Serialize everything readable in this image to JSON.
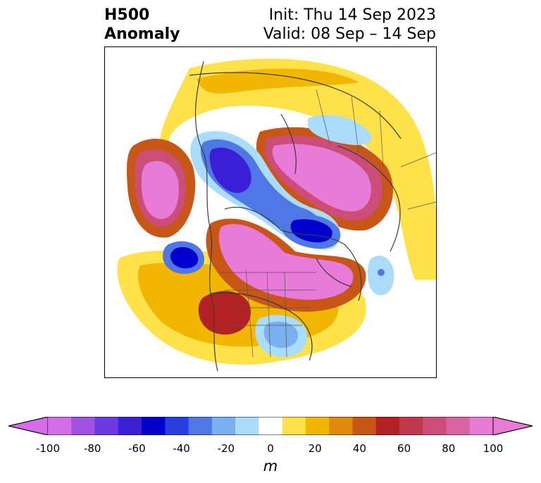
{
  "title": {
    "line1_left": "H500",
    "line2_left": "Anomaly",
    "line1_right": "Init: Thu 14 Sep 2023",
    "line2_right": "Valid: 08 Sep – 14 Sep"
  },
  "map": {
    "field": "500 hPa geopotential height anomaly",
    "projection": "north polar stereographic",
    "features": {
      "positive_centers": [
        "Pacific west of North America",
        "Central Canada",
        "Northern Siberia",
        "Western US"
      ],
      "negative_centers": [
        "Northeast Pacific / Gulf of Alaska",
        "Beaufort Sea / Arctic",
        "Alaska region",
        "Eastern United States",
        "North Atlantic"
      ]
    }
  },
  "colorbar": {
    "unit": "m",
    "ticks": [
      "-100",
      "-80",
      "-60",
      "-40",
      "-20",
      "0",
      "20",
      "40",
      "60",
      "80",
      "100"
    ],
    "levels": [
      -100,
      -90,
      -80,
      -70,
      -60,
      -50,
      -40,
      -30,
      -20,
      -10,
      10,
      20,
      30,
      40,
      50,
      60,
      70,
      80,
      90,
      100
    ],
    "colors": [
      "#d36ee8",
      "#9f53e0",
      "#6a3ae0",
      "#3a1fd6",
      "#0000cc",
      "#2a3edf",
      "#4f78e6",
      "#78b0f2",
      "#acdcfb",
      "#ffffff",
      "#ffe14a",
      "#f2b600",
      "#e08a0c",
      "#c85717",
      "#b22222",
      "#c0384b",
      "#cc4d78",
      "#d864a4",
      "#e87ad8"
    ],
    "extend_low_color": "#d36ee8",
    "extend_high_color": "#e87ad8"
  }
}
